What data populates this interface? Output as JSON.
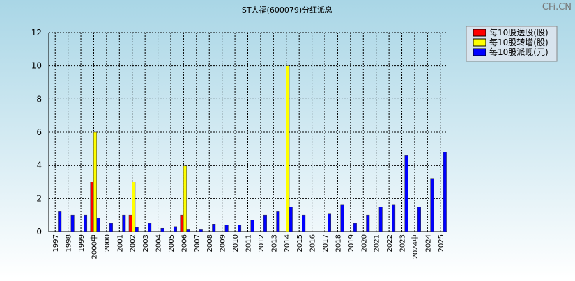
{
  "chart_data": {
    "type": "bar",
    "title": "ST人福(600079)分红派息",
    "watermark": "CFi.CN",
    "categories": [
      "1997",
      "1998",
      "1999",
      "2000中",
      "2000",
      "2001",
      "2002",
      "2003",
      "2004",
      "2005",
      "2006",
      "2007",
      "2008",
      "2009",
      "2010",
      "2011",
      "2012",
      "2013",
      "2014",
      "2015",
      "2016",
      "2017",
      "2018",
      "2019",
      "2020",
      "2021",
      "2022",
      "2023",
      "2024中",
      "2024",
      "2025"
    ],
    "series": [
      {
        "name": "每10股送股(股)",
        "color": "#ff0000",
        "values": [
          0,
          0,
          0,
          3,
          0,
          0,
          1,
          0,
          0,
          0,
          1,
          0,
          0,
          0,
          0,
          0,
          0,
          0,
          0,
          0,
          0,
          0,
          0,
          0,
          0,
          0,
          0,
          0,
          0,
          0,
          0
        ]
      },
      {
        "name": "每10股转增(股)",
        "color": "#ffff00",
        "values": [
          0,
          0,
          0,
          6,
          0,
          0,
          3,
          0,
          0,
          0,
          4,
          0,
          0,
          0,
          0,
          0,
          0,
          0,
          10,
          0,
          0,
          0,
          0,
          0,
          0,
          0,
          0,
          0,
          0,
          0,
          0
        ]
      },
      {
        "name": "每10股派现(元)",
        "color": "#0000ff",
        "values": [
          1.2,
          1.0,
          1.0,
          0.8,
          0.5,
          1.0,
          0.25,
          0.5,
          0.2,
          0.3,
          0.15,
          0.15,
          0.45,
          0.4,
          0.4,
          0.7,
          1.0,
          1.2,
          1.5,
          1.0,
          0,
          1.1,
          1.6,
          0.5,
          1.0,
          1.5,
          1.6,
          4.6,
          1.5,
          3.2,
          4.8
        ]
      }
    ],
    "ylim": [
      0,
      12
    ],
    "yticks": [
      0,
      2,
      4,
      6,
      8,
      10,
      12
    ],
    "grid": true
  }
}
